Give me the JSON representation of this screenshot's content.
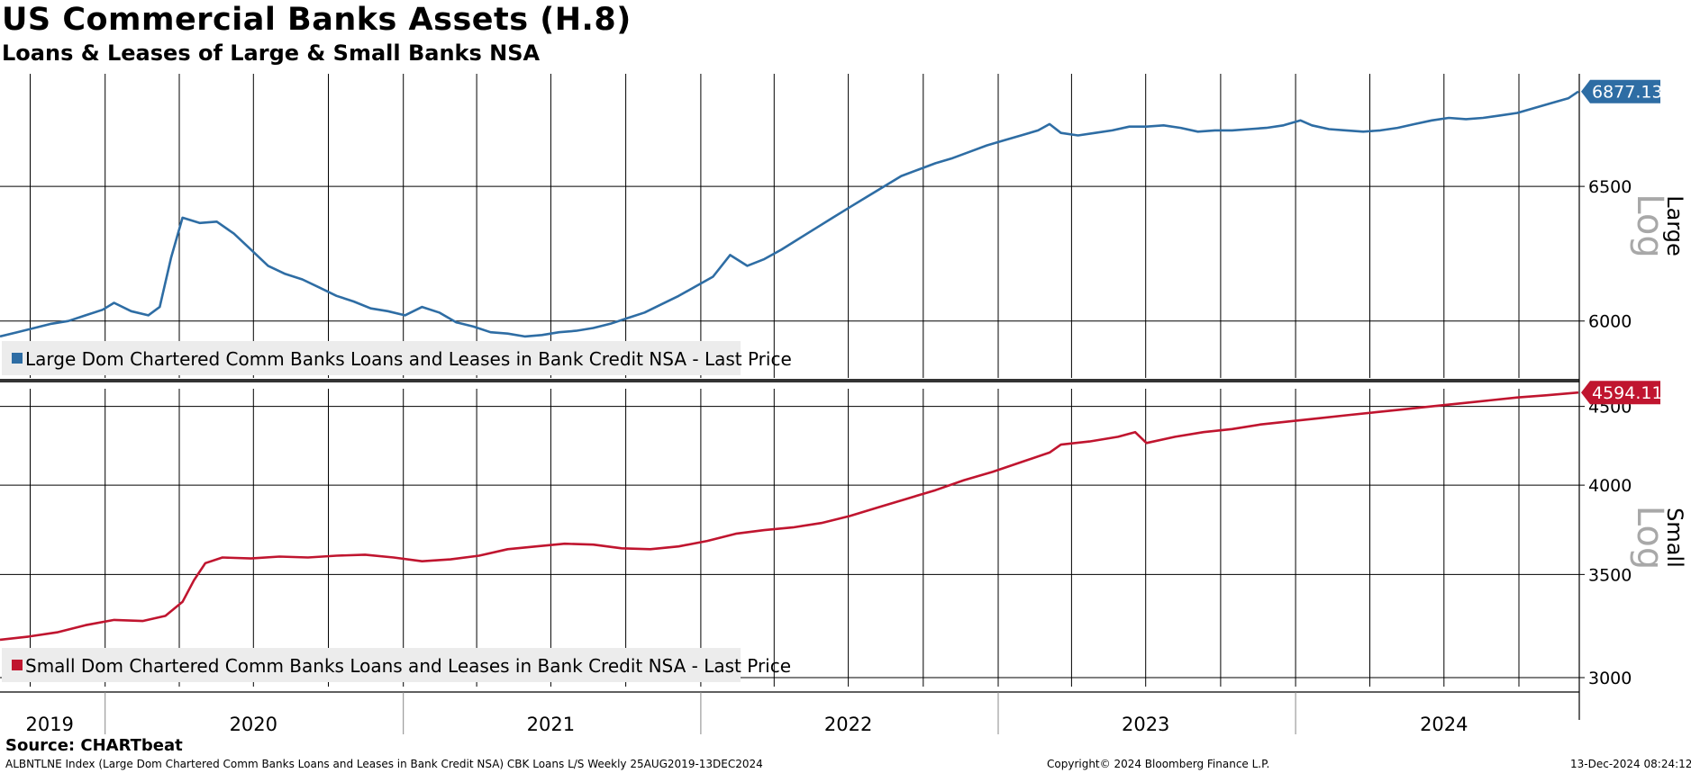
{
  "header": {
    "title": "US Commercial Banks Assets (H.8)",
    "subtitle": "Loans & Leases of Large & Small Banks NSA"
  },
  "footer": {
    "source": "Source: CHARTbeat",
    "description": "ALBNTLNE Index (Large Dom Chartered Comm Banks Loans and Leases in Bank Credit NSA) CBK Loans L/S  Weekly 25AUG2019-13DEC2024",
    "copyright": "Copyright© 2024 Bloomberg Finance L.P.",
    "timestamp": "13-Dec-2024 08:24:12"
  },
  "colors": {
    "large": "#2e6da4",
    "small": "#c0152f",
    "grid": "#000000",
    "log_label": "#a8a8a8",
    "legend_bg": "#ececec"
  },
  "chart_data": [
    {
      "type": "line",
      "panel": "top",
      "scale": "log",
      "axis_side_label": "Large",
      "scale_label": "Log",
      "ylim": [
        5800,
        6950
      ],
      "yticks": [
        6000,
        6500
      ],
      "xlim": [
        "2019-08-25",
        "2024-12-13"
      ],
      "x_tick_labels": [
        "2019",
        "2020",
        "2021",
        "2022",
        "2023",
        "2024"
      ],
      "last_value_label": "6877.13",
      "series": [
        {
          "name": "Large Dom Chartered Comm Banks Loans and Leases in Bank Credit NSA - Last Price",
          "points": [
            [
              "2019-08-25",
              5945
            ],
            [
              "2019-09-15",
              5960
            ],
            [
              "2019-10-06",
              5975
            ],
            [
              "2019-10-27",
              5990
            ],
            [
              "2019-11-17",
              6000
            ],
            [
              "2019-12-08",
              6020
            ],
            [
              "2019-12-29",
              6040
            ],
            [
              "2020-01-12",
              6065
            ],
            [
              "2020-02-02",
              6035
            ],
            [
              "2020-02-23",
              6020
            ],
            [
              "2020-03-08",
              6050
            ],
            [
              "2020-03-22",
              6230
            ],
            [
              "2020-04-05",
              6380
            ],
            [
              "2020-04-26",
              6360
            ],
            [
              "2020-05-17",
              6365
            ],
            [
              "2020-06-07",
              6320
            ],
            [
              "2020-06-28",
              6260
            ],
            [
              "2020-07-19",
              6200
            ],
            [
              "2020-08-09",
              6170
            ],
            [
              "2020-08-30",
              6150
            ],
            [
              "2020-09-20",
              6120
            ],
            [
              "2020-10-11",
              6090
            ],
            [
              "2020-11-01",
              6070
            ],
            [
              "2020-11-22",
              6045
            ],
            [
              "2020-12-13",
              6035
            ],
            [
              "2021-01-03",
              6020
            ],
            [
              "2021-01-24",
              6050
            ],
            [
              "2021-02-14",
              6030
            ],
            [
              "2021-03-07",
              5995
            ],
            [
              "2021-03-28",
              5980
            ],
            [
              "2021-04-18",
              5960
            ],
            [
              "2021-05-09",
              5955
            ],
            [
              "2021-05-30",
              5945
            ],
            [
              "2021-06-20",
              5950
            ],
            [
              "2021-07-11",
              5960
            ],
            [
              "2021-08-01",
              5965
            ],
            [
              "2021-08-22",
              5975
            ],
            [
              "2021-09-12",
              5990
            ],
            [
              "2021-10-03",
              6010
            ],
            [
              "2021-10-24",
              6030
            ],
            [
              "2021-11-14",
              6060
            ],
            [
              "2021-12-05",
              6090
            ],
            [
              "2021-12-26",
              6125
            ],
            [
              "2022-01-16",
              6160
            ],
            [
              "2022-02-06",
              6240
            ],
            [
              "2022-02-27",
              6200
            ],
            [
              "2022-03-20",
              6225
            ],
            [
              "2022-04-10",
              6260
            ],
            [
              "2022-05-01",
              6300
            ],
            [
              "2022-05-22",
              6340
            ],
            [
              "2022-06-12",
              6380
            ],
            [
              "2022-07-03",
              6420
            ],
            [
              "2022-07-24",
              6460
            ],
            [
              "2022-08-14",
              6500
            ],
            [
              "2022-09-04",
              6540
            ],
            [
              "2022-09-25",
              6565
            ],
            [
              "2022-10-16",
              6590
            ],
            [
              "2022-11-06",
              6610
            ],
            [
              "2022-11-27",
              6635
            ],
            [
              "2022-12-18",
              6660
            ],
            [
              "2023-01-08",
              6680
            ],
            [
              "2023-01-29",
              6700
            ],
            [
              "2023-02-19",
              6720
            ],
            [
              "2023-03-05",
              6745
            ],
            [
              "2023-03-19",
              6710
            ],
            [
              "2023-04-09",
              6700
            ],
            [
              "2023-04-30",
              6710
            ],
            [
              "2023-05-21",
              6720
            ],
            [
              "2023-06-11",
              6735
            ],
            [
              "2023-07-02",
              6735
            ],
            [
              "2023-07-23",
              6740
            ],
            [
              "2023-08-13",
              6730
            ],
            [
              "2023-09-03",
              6715
            ],
            [
              "2023-09-24",
              6720
            ],
            [
              "2023-10-15",
              6720
            ],
            [
              "2023-11-05",
              6725
            ],
            [
              "2023-11-26",
              6730
            ],
            [
              "2023-12-17",
              6740
            ],
            [
              "2024-01-07",
              6760
            ],
            [
              "2024-01-21",
              6740
            ],
            [
              "2024-02-11",
              6725
            ],
            [
              "2024-03-03",
              6720
            ],
            [
              "2024-03-24",
              6715
            ],
            [
              "2024-04-14",
              6720
            ],
            [
              "2024-05-05",
              6730
            ],
            [
              "2024-05-26",
              6745
            ],
            [
              "2024-06-16",
              6760
            ],
            [
              "2024-07-07",
              6770
            ],
            [
              "2024-07-28",
              6765
            ],
            [
              "2024-08-18",
              6770
            ],
            [
              "2024-09-08",
              6780
            ],
            [
              "2024-09-29",
              6790
            ],
            [
              "2024-10-20",
              6810
            ],
            [
              "2024-11-10",
              6830
            ],
            [
              "2024-12-01",
              6850
            ],
            [
              "2024-12-13",
              6877.13
            ]
          ]
        }
      ]
    },
    {
      "type": "line",
      "panel": "bottom",
      "scale": "log",
      "axis_side_label": "Small",
      "scale_label": "Log",
      "ylim": [
        2960,
        4620
      ],
      "yticks": [
        3000,
        3500,
        4000,
        4500
      ],
      "xlim": [
        "2019-08-25",
        "2024-12-13"
      ],
      "x_tick_labels": [
        "2019",
        "2020",
        "2021",
        "2022",
        "2023",
        "2024"
      ],
      "last_value_label": "4594.11",
      "series": [
        {
          "name": "Small Dom Chartered Comm Banks Loans and Leases in Bank Credit NSA - Last Price",
          "points": [
            [
              "2019-08-25",
              3175
            ],
            [
              "2019-09-29",
              3190
            ],
            [
              "2019-11-03",
              3210
            ],
            [
              "2019-12-08",
              3245
            ],
            [
              "2020-01-12",
              3270
            ],
            [
              "2020-02-16",
              3265
            ],
            [
              "2020-03-15",
              3290
            ],
            [
              "2020-04-05",
              3360
            ],
            [
              "2020-04-19",
              3470
            ],
            [
              "2020-05-03",
              3560
            ],
            [
              "2020-05-24",
              3590
            ],
            [
              "2020-06-28",
              3585
            ],
            [
              "2020-08-02",
              3595
            ],
            [
              "2020-09-06",
              3590
            ],
            [
              "2020-10-11",
              3600
            ],
            [
              "2020-11-15",
              3605
            ],
            [
              "2020-12-20",
              3590
            ],
            [
              "2021-01-24",
              3570
            ],
            [
              "2021-02-28",
              3580
            ],
            [
              "2021-04-04",
              3600
            ],
            [
              "2021-05-09",
              3635
            ],
            [
              "2021-06-13",
              3650
            ],
            [
              "2021-07-18",
              3665
            ],
            [
              "2021-08-22",
              3660
            ],
            [
              "2021-09-26",
              3640
            ],
            [
              "2021-10-31",
              3635
            ],
            [
              "2021-12-05",
              3650
            ],
            [
              "2022-01-09",
              3680
            ],
            [
              "2022-02-13",
              3720
            ],
            [
              "2022-03-20",
              3740
            ],
            [
              "2022-04-24",
              3755
            ],
            [
              "2022-05-29",
              3780
            ],
            [
              "2022-07-03",
              3820
            ],
            [
              "2022-08-07",
              3870
            ],
            [
              "2022-09-11",
              3920
            ],
            [
              "2022-10-16",
              3970
            ],
            [
              "2022-11-20",
              4030
            ],
            [
              "2022-12-25",
              4080
            ],
            [
              "2023-01-29",
              4140
            ],
            [
              "2023-03-05",
              4200
            ],
            [
              "2023-03-19",
              4250
            ],
            [
              "2023-04-23",
              4270
            ],
            [
              "2023-05-28",
              4300
            ],
            [
              "2023-06-18",
              4330
            ],
            [
              "2023-07-02",
              4260
            ],
            [
              "2023-08-06",
              4300
            ],
            [
              "2023-09-10",
              4330
            ],
            [
              "2023-10-15",
              4350
            ],
            [
              "2023-11-19",
              4380
            ],
            [
              "2023-12-24",
              4400
            ],
            [
              "2024-01-28",
              4420
            ],
            [
              "2024-03-03",
              4440
            ],
            [
              "2024-04-07",
              4460
            ],
            [
              "2024-05-12",
              4480
            ],
            [
              "2024-06-16",
              4500
            ],
            [
              "2024-07-21",
              4520
            ],
            [
              "2024-08-25",
              4540
            ],
            [
              "2024-09-29",
              4560
            ],
            [
              "2024-11-03",
              4575
            ],
            [
              "2024-12-13",
              4594.11
            ]
          ]
        }
      ]
    }
  ]
}
